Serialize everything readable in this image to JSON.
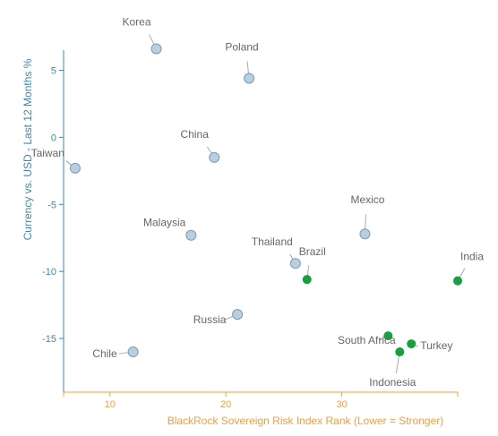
{
  "chart_data": {
    "type": "scatter",
    "xlabel": "BlackRock Sovereign Risk Index Rank (Lower = Stronger)",
    "ylabel": "Currency vs. USD - Last 12 Months %",
    "xlim": [
      6,
      40
    ],
    "ylim": [
      -19,
      6.5
    ],
    "xticks": [
      10,
      20,
      30
    ],
    "yticks": [
      5,
      0,
      -5,
      -10,
      -15
    ],
    "grid": false,
    "points": [
      {
        "label": "Korea",
        "x": 14,
        "y": 6.6,
        "highlight": false
      },
      {
        "label": "Poland",
        "x": 22,
        "y": 4.4,
        "highlight": false
      },
      {
        "label": "China",
        "x": 19,
        "y": -1.5,
        "highlight": false
      },
      {
        "label": "Taiwan",
        "x": 7,
        "y": -2.3,
        "highlight": false
      },
      {
        "label": "Malaysia",
        "x": 17,
        "y": -7.3,
        "highlight": false
      },
      {
        "label": "Mexico",
        "x": 32,
        "y": -7.2,
        "highlight": false
      },
      {
        "label": "Thailand",
        "x": 26,
        "y": -9.4,
        "highlight": false
      },
      {
        "label": "Brazil",
        "x": 27,
        "y": -10.6,
        "highlight": true
      },
      {
        "label": "India",
        "x": 40,
        "y": -10.7,
        "highlight": true
      },
      {
        "label": "Russia",
        "x": 21,
        "y": -13.2,
        "highlight": false
      },
      {
        "label": "Chile",
        "x": 12,
        "y": -16.0,
        "highlight": false
      },
      {
        "label": "South Africa",
        "x": 34,
        "y": -14.8,
        "highlight": true
      },
      {
        "label": "Turkey",
        "x": 36,
        "y": -15.4,
        "highlight": true
      },
      {
        "label": "Indonesia",
        "x": 35,
        "y": -16.0,
        "highlight": true
      }
    ]
  },
  "colors": {
    "axis_x": "#f0a040",
    "axis_y": "#3a8ab0",
    "marker_default": "#b8cfe0",
    "marker_default_stroke": "#7a9ab5",
    "marker_highlight": "#16a040",
    "label_text": "#666666",
    "leader_line": "#aaaaaa"
  }
}
